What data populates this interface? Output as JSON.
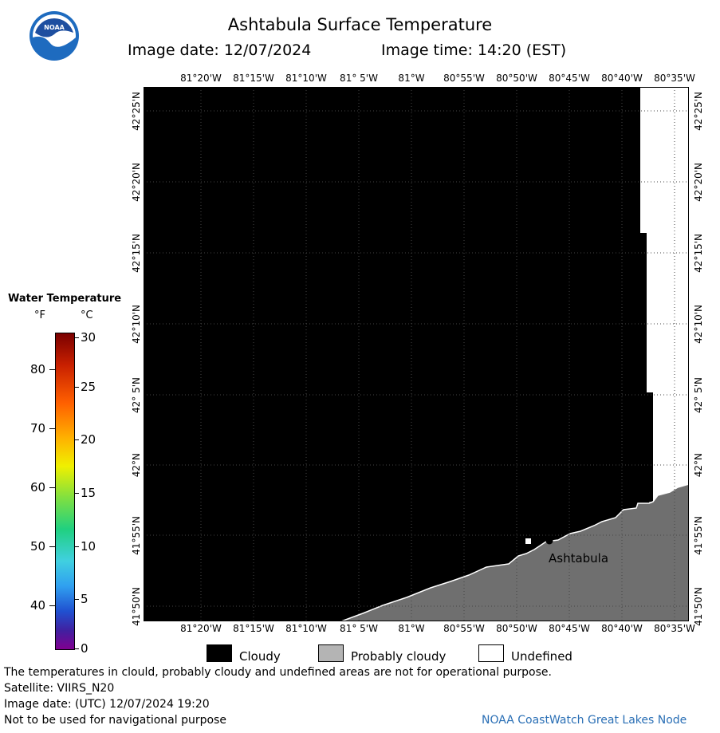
{
  "header": {
    "title": "Ashtabula Surface Temperature",
    "date_label": "Image date: 12/07/2024",
    "time_label": "Image time: 14:20 (EST)"
  },
  "logo": {
    "text": "NOAA",
    "icon": "noaa-logo-icon"
  },
  "map": {
    "lon_ticks": [
      "81°20'W",
      "81°15'W",
      "81°10'W",
      "81° 5'W",
      "81°W",
      "80°55'W",
      "80°50'W",
      "80°45'W",
      "80°40'W",
      "80°35'W"
    ],
    "lat_ticks": [
      "42°25'N",
      "42°20'N",
      "42°15'N",
      "42°10'N",
      "42° 5'N",
      "42°N",
      "41°55'N",
      "41°50'N"
    ],
    "city": "Ashtabula",
    "colors": {
      "cloudy": "#000000",
      "probably_cloudy": "#6f6f6f",
      "undefined": "#ffffff"
    }
  },
  "colorbar": {
    "title": "Water Temperature",
    "f_label": "°F",
    "c_label": "°C",
    "f_ticks": [
      "80",
      "70",
      "60",
      "50",
      "40"
    ],
    "c_ticks": [
      "30",
      "25",
      "20",
      "15",
      "10",
      "5",
      "0"
    ]
  },
  "key": {
    "cloudy": "Cloudy",
    "probably_cloudy": "Probably cloudy",
    "undefined": "Undefined"
  },
  "footer": {
    "line1": "The temperatures in clould, probably cloudy and undefined areas are not for operational purpose.",
    "line2": "Satellite: VIIRS_N20",
    "line3": "Image date: (UTC) 12/07/2024  19:20",
    "line4": "Not to be used for navigational purpose",
    "credit": "NOAA CoastWatch Great Lakes Node"
  }
}
